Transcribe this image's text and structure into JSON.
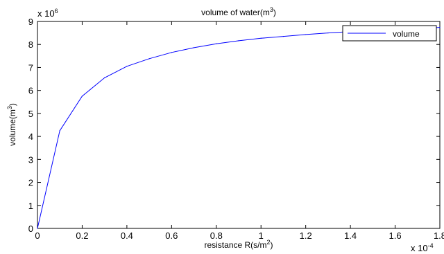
{
  "chart_data": {
    "type": "line",
    "title": "volume of water(m",
    "title_sup": "3",
    "title_end": ")",
    "xlabel": "resistance R(s/m",
    "xlabel_sup": "2",
    "xlabel_end": ")",
    "ylabel": "volume(m",
    "ylabel_sup": "3",
    "ylabel_end": ")",
    "x_multiplier": "x 10",
    "x_multiplier_exp": "-4",
    "y_multiplier": "x 10",
    "y_multiplier_exp": "6",
    "xlim": [
      0,
      1.8
    ],
    "ylim": [
      0,
      9
    ],
    "x_ticks": [
      0,
      0.2,
      0.4,
      0.6,
      0.8,
      1,
      1.2,
      1.4,
      1.6,
      1.8
    ],
    "x_tick_labels": [
      "0",
      "0.2",
      "0.4",
      "0.6",
      "0.8",
      "1",
      "1.2",
      "1.4",
      "1.6",
      "1.8"
    ],
    "y_ticks": [
      0,
      1,
      2,
      3,
      4,
      5,
      6,
      7,
      8,
      9
    ],
    "y_tick_labels": [
      "0",
      "1",
      "2",
      "3",
      "4",
      "5",
      "6",
      "7",
      "8",
      "9"
    ],
    "grid": false,
    "legend_position": "top-right",
    "series": [
      {
        "name": "volume",
        "color": "#0000ff",
        "x": [
          0,
          0.1,
          0.2,
          0.3,
          0.4,
          0.5,
          0.6,
          0.7,
          0.8,
          0.9,
          1.0,
          1.1,
          1.2,
          1.3,
          1.4,
          1.5,
          1.6,
          1.7,
          1.8
        ],
        "y": [
          0,
          4.25,
          5.75,
          6.55,
          7.05,
          7.38,
          7.65,
          7.86,
          8.03,
          8.16,
          8.27,
          8.35,
          8.43,
          8.5,
          8.56,
          8.61,
          8.66,
          8.7,
          8.74
        ]
      }
    ]
  }
}
